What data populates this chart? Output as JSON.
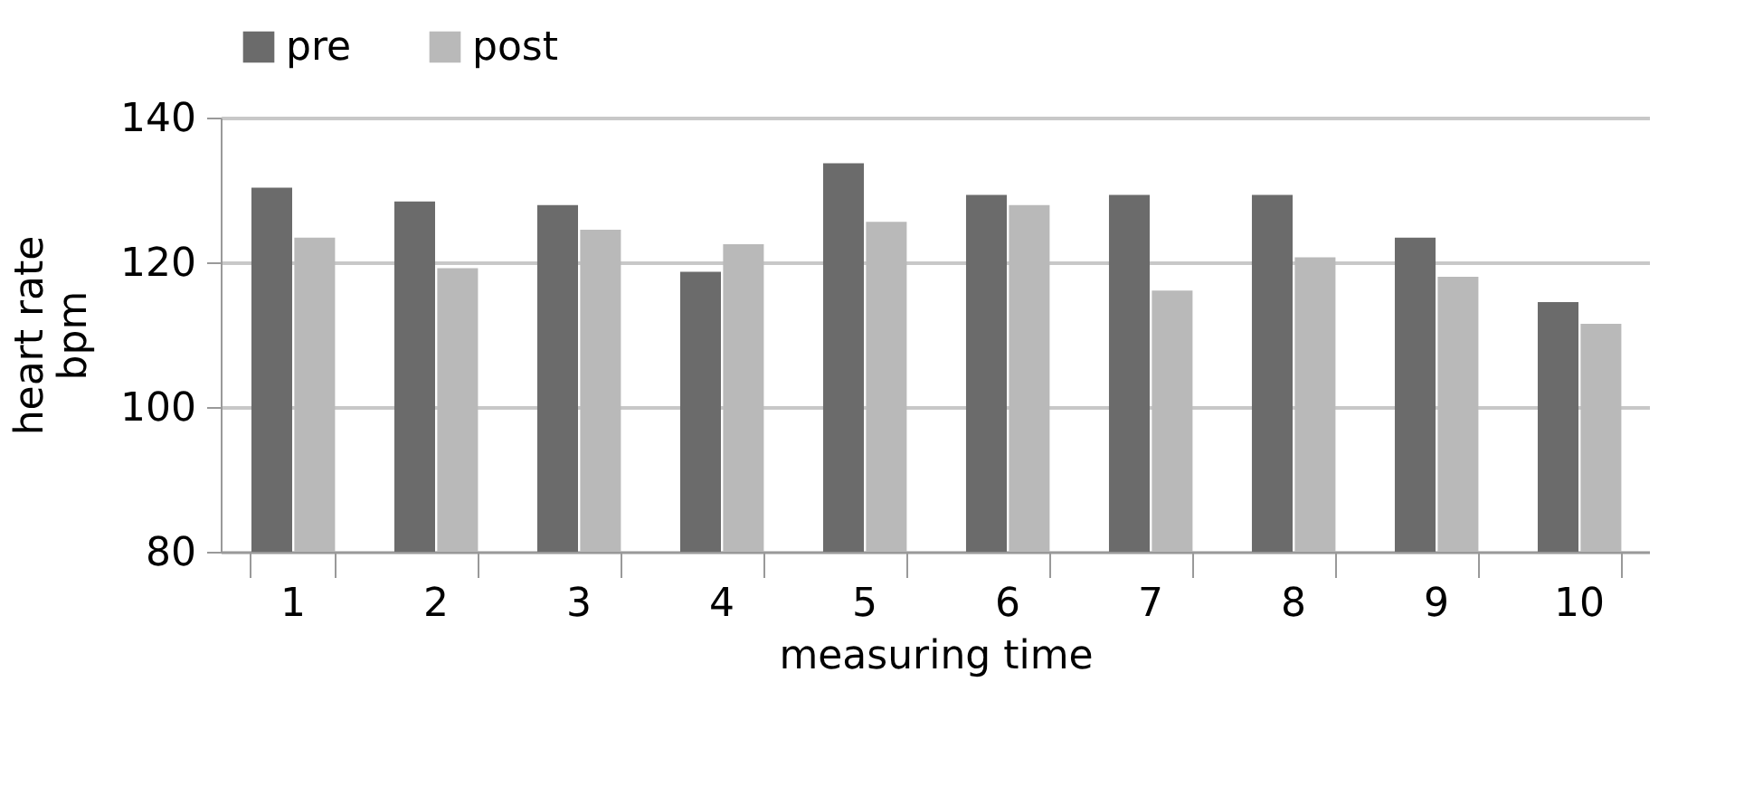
{
  "chart_data": {
    "type": "bar",
    "xlabel": "measuring time",
    "ylabel": "heart rate\nbpm",
    "categories": [
      "1",
      "2",
      "3",
      "4",
      "5",
      "6",
      "7",
      "8",
      "9",
      "10"
    ],
    "series": [
      {
        "name": "pre",
        "color": "#6b6b6b",
        "values": [
          130.3,
          128.4,
          127.9,
          118.7,
          133.7,
          129.3,
          129.3,
          129.3,
          123.4,
          114.5
        ]
      },
      {
        "name": "post",
        "color": "#b9b9b9",
        "values": [
          123.4,
          119.2,
          124.5,
          122.5,
          125.6,
          127.9,
          116.1,
          120.7,
          118.0,
          111.5
        ]
      }
    ],
    "ylim": [
      80,
      140
    ],
    "yticks": [
      80,
      100,
      120,
      140
    ],
    "grid": "y",
    "legend": "top"
  }
}
